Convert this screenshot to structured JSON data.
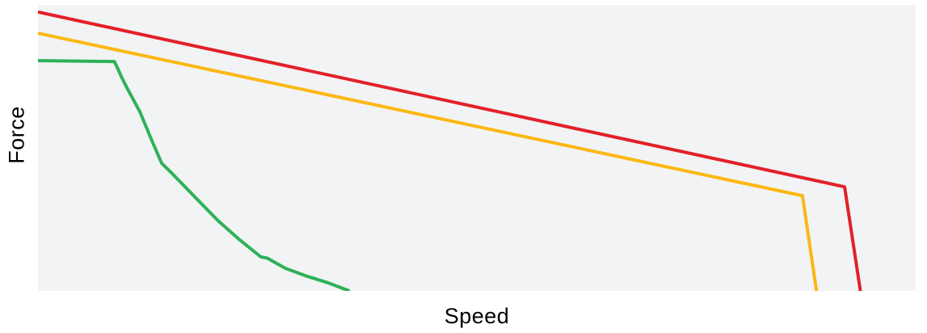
{
  "chart_data": {
    "type": "line",
    "title": "",
    "xlabel": "Speed",
    "ylabel": "Force",
    "xlim": [
      0,
      100
    ],
    "ylim": [
      0,
      100
    ],
    "grid": false,
    "legend": "none",
    "axis_ticks": "none",
    "plot_background": "#f2f3f5",
    "page_background": "#ffffff",
    "label_color": "#000000",
    "line_width": 4,
    "series": [
      {
        "name": "red-curve",
        "color": "#e22128",
        "points": [
          [
            0,
            97.5
          ],
          [
            91.9,
            36.4
          ],
          [
            93.7,
            0
          ]
        ]
      },
      {
        "name": "amber-curve",
        "color": "#fcb713",
        "points": [
          [
            0,
            90.1
          ],
          [
            87.1,
            33.3
          ],
          [
            88.7,
            0
          ]
        ]
      },
      {
        "name": "green-curve",
        "color": "#30b158",
        "points": [
          [
            0,
            80.5
          ],
          [
            8.7,
            80.2
          ],
          [
            9.1,
            77.7
          ],
          [
            9.5,
            74.9
          ],
          [
            10.1,
            71.2
          ],
          [
            11.6,
            62.7
          ],
          [
            12.9,
            53.1
          ],
          [
            14.1,
            44.6
          ],
          [
            15.3,
            41.0
          ],
          [
            17.8,
            33.1
          ],
          [
            20.5,
            24.6
          ],
          [
            23.0,
            17.8
          ],
          [
            25.4,
            11.9
          ],
          [
            26.1,
            11.5
          ],
          [
            26.7,
            10.5
          ],
          [
            28.2,
            7.9
          ],
          [
            30.7,
            5.1
          ],
          [
            33.1,
            2.8
          ],
          [
            35.5,
            0
          ]
        ]
      }
    ]
  }
}
